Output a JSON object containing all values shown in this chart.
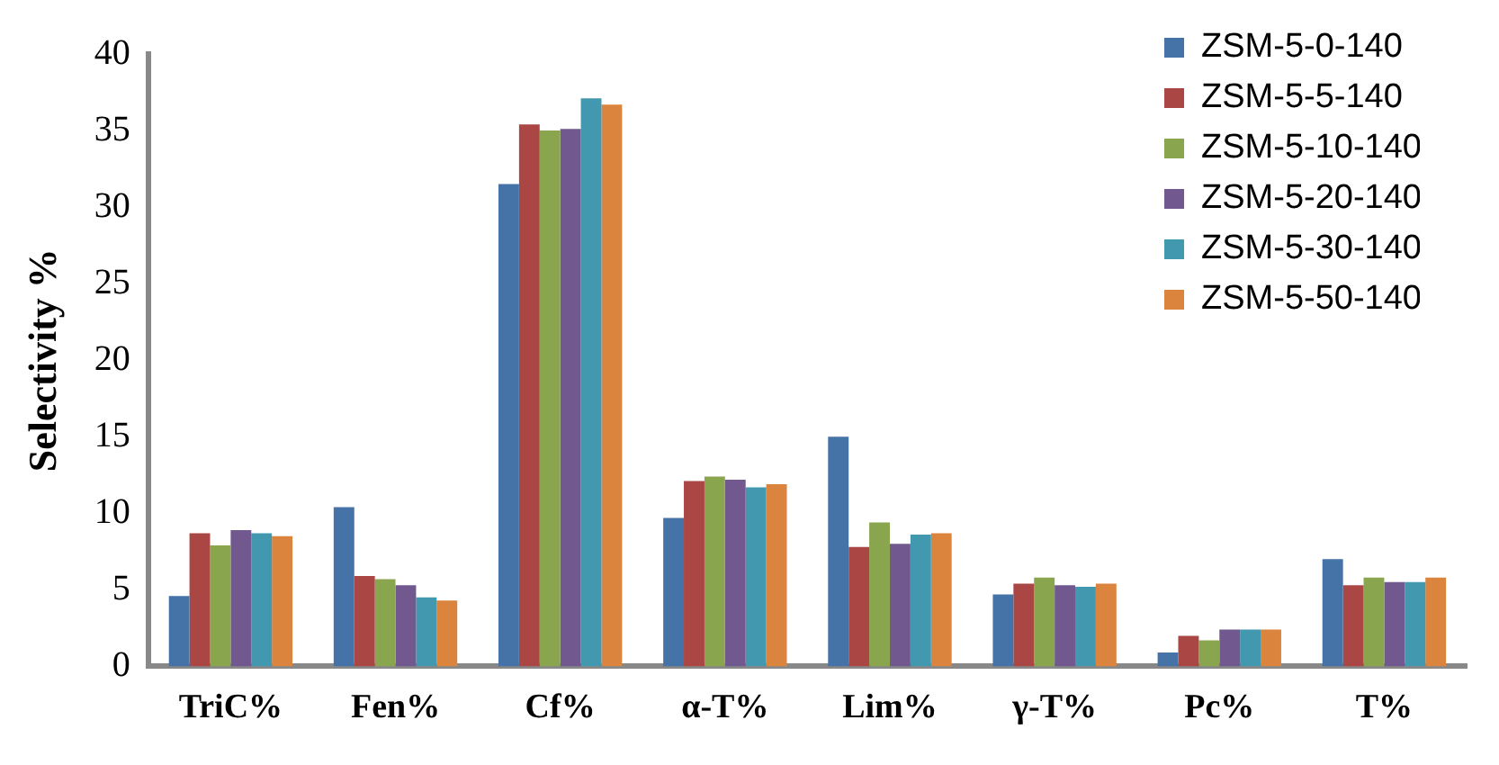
{
  "chart_data": {
    "type": "bar",
    "ylabel": "Selectivity %",
    "categories": [
      "TriC%",
      "Fen%",
      "Cf%",
      "α-T%",
      "Lim%",
      "γ-T%",
      "Pc%",
      "T%"
    ],
    "series": [
      {
        "name": "ZSM-5-0-140",
        "color": "#4572a7",
        "values": [
          4.6,
          10.4,
          31.5,
          9.7,
          15.0,
          4.7,
          0.9,
          7.0
        ]
      },
      {
        "name": "ZSM-5-5-140",
        "color": "#aa4643",
        "values": [
          8.7,
          5.9,
          35.4,
          12.1,
          7.8,
          5.4,
          2.0,
          5.3
        ]
      },
      {
        "name": "ZSM-5-10-140",
        "color": "#89a54e",
        "values": [
          7.9,
          5.7,
          35.0,
          12.4,
          9.4,
          5.8,
          1.7,
          5.8
        ]
      },
      {
        "name": "ZSM-5-20-140",
        "color": "#71588f",
        "values": [
          8.9,
          5.3,
          35.1,
          12.2,
          8.0,
          5.3,
          2.4,
          5.5
        ]
      },
      {
        "name": "ZSM-5-30-140",
        "color": "#4198af",
        "values": [
          8.7,
          4.5,
          37.1,
          11.7,
          8.6,
          5.2,
          2.4,
          5.5
        ]
      },
      {
        "name": "ZSM-5-50-140",
        "color": "#db843d",
        "values": [
          8.5,
          4.3,
          36.7,
          11.9,
          8.7,
          5.4,
          2.4,
          5.8
        ]
      }
    ],
    "ylim": [
      0,
      40
    ],
    "yticks": [
      0,
      5,
      10,
      15,
      20,
      25,
      30,
      35,
      40
    ],
    "grid": false,
    "legend": "top right"
  }
}
